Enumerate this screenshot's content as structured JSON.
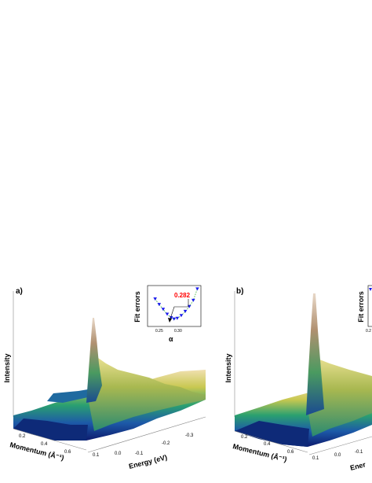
{
  "figure": {
    "panels": [
      {
        "label": "a)",
        "zlabel": "Intensity",
        "momentum_label": "Momentum (Å⁻¹)",
        "energy_label": "Energy (eV)",
        "momentum_ticks": [
          "0.2",
          "0.4",
          "0.6"
        ],
        "energy_ticks": [
          "0.1",
          "0.0",
          "-0.1",
          "-0.2",
          "-0.3"
        ],
        "inset": {
          "ylabel": "Fit errors",
          "xlabel": "α",
          "xticks": [
            "0.25",
            "0.30"
          ],
          "min_label": "0.282"
        }
      },
      {
        "label": "b)",
        "zlabel": "Intensity",
        "momentum_label": "Momentum (Å⁻¹)",
        "energy_label": "Ener",
        "momentum_ticks": [
          "0.2",
          "0.4",
          "0.6"
        ],
        "energy_ticks": [
          "0.1",
          "0.0",
          "-0.1"
        ],
        "inset": {
          "ylabel": "Fit errors",
          "xlabel": "",
          "xticks": [
            "0.2"
          ],
          "min_label": ""
        }
      }
    ]
  },
  "chart_data": [
    {
      "type": "surface",
      "title": "a)",
      "zlabel": "Intensity",
      "xlabel": "Momentum (Å⁻¹)",
      "ylabel": "Energy (eV)",
      "xticks": [
        0.2,
        0.4,
        0.6
      ],
      "yticks": [
        0.1,
        0.0,
        -0.1,
        -0.2,
        -0.3
      ],
      "inset": {
        "type": "scatter",
        "xlabel": "α",
        "ylabel": "Fit errors",
        "xlim": [
          0.22,
          0.345
        ],
        "x": [
          0.235,
          0.245,
          0.255,
          0.265,
          0.275,
          0.282,
          0.29,
          0.3,
          0.31,
          0.32,
          0.33,
          0.34
        ],
        "y": [
          0.68,
          0.52,
          0.38,
          0.24,
          0.14,
          0.1,
          0.12,
          0.2,
          0.32,
          0.46,
          0.64,
          0.97
        ],
        "minimum_alpha": 0.282,
        "fit_line_color": "#22aa22",
        "marker_color": "#1a1aee"
      }
    },
    {
      "type": "surface",
      "title": "b)",
      "zlabel": "Intensity",
      "xlabel": "Momentum (Å⁻¹)",
      "xticks": [
        0.2,
        0.4,
        0.6
      ],
      "yticks": [
        0.1,
        0.0,
        -0.1
      ],
      "inset": {
        "type": "scatter",
        "ylabel": "Fit errors",
        "marker_color": "#1a1aee"
      }
    }
  ]
}
